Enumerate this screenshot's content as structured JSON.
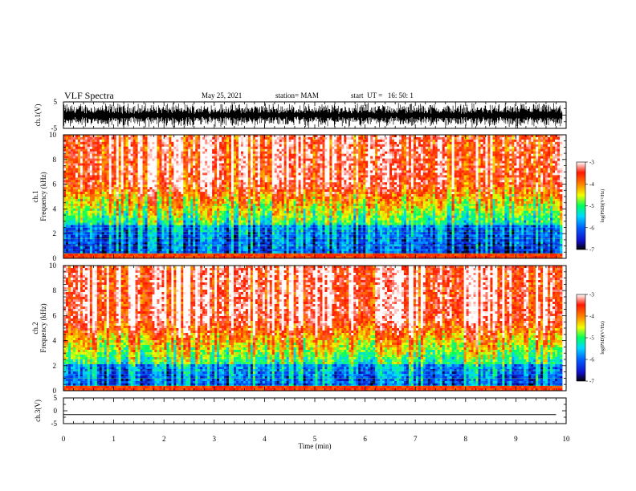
{
  "header": {
    "title": "VLF Spectra",
    "date": "May 25, 2021",
    "station": "station= MAM",
    "start": "start  UT =   16: 50: 1"
  },
  "chart_data": [
    {
      "type": "line",
      "panel": "ch1_waveform",
      "ylabel": "ch.1(V)",
      "ylim": [
        -5,
        5
      ],
      "yticks": [
        "5",
        "-5"
      ],
      "xlim": [
        0,
        10
      ]
    },
    {
      "type": "heatmap",
      "panel": "ch1_spectrogram",
      "ylabel_line1": "ch.1",
      "ylabel_line2": "Frequency (kHz)",
      "ylim": [
        0,
        10
      ],
      "yticks": [
        "0",
        "2",
        "4",
        "6",
        "8",
        "10"
      ],
      "xlim": [
        0,
        10
      ],
      "colorbar": {
        "label": "log(PSD)(V²/Hz)",
        "range": [
          -7,
          -3
        ],
        "ticks": [
          "-3",
          "-4",
          "-5",
          "-6",
          "-7"
        ],
        "colormap": [
          "#000000",
          "#1010c8",
          "#0060ff",
          "#00d8ff",
          "#00ff60",
          "#f0ff00",
          "#ff8000",
          "#ff1800",
          "#ffffff"
        ]
      }
    },
    {
      "type": "heatmap",
      "panel": "ch2_spectrogram",
      "ylabel_line1": "ch.2",
      "ylabel_line2": "Frequency (kHz)",
      "ylim": [
        0,
        10
      ],
      "yticks": [
        "0",
        "2",
        "4",
        "6",
        "8",
        "10"
      ],
      "xlim": [
        0,
        10
      ],
      "colorbar": {
        "label": "log(PSD)(V²/Hz)",
        "range": [
          -7,
          -3
        ],
        "ticks": [
          "-3",
          "-4",
          "-5",
          "-6",
          "-7"
        ],
        "colormap": [
          "#000000",
          "#1010c8",
          "#0060ff",
          "#00d8ff",
          "#00ff60",
          "#f0ff00",
          "#ff8000",
          "#ff1800",
          "#ffffff"
        ]
      }
    },
    {
      "type": "line",
      "panel": "ch3_waveform",
      "ylabel": "ch.3(V)",
      "ylim": [
        -5,
        5
      ],
      "yticks": [
        "5",
        "0",
        "-5"
      ],
      "series": [
        {
          "values": [
            -1.5,
            -1.5
          ]
        }
      ],
      "x": [
        0,
        9.8
      ],
      "xlim": [
        0,
        10
      ],
      "xticks": [
        "0",
        "1",
        "2",
        "3",
        "4",
        "5",
        "6",
        "7",
        "8",
        "9",
        "10"
      ],
      "xlabel": "Time (min)"
    }
  ]
}
